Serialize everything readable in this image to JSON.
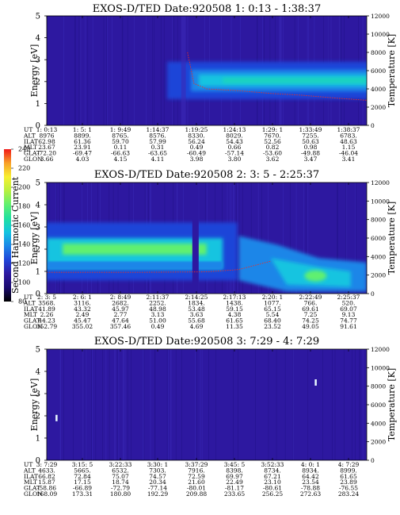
{
  "colors": {
    "background": "#2d18a0",
    "colorbar": [
      "#000000",
      "#1a0a6e",
      "#2d18a0",
      "#1f44d8",
      "#1a86e8",
      "#12c4e0",
      "#20e0a0",
      "#60f070",
      "#b8f040",
      "#f8f030",
      "#f8a028",
      "#f01818"
    ]
  },
  "colorbar": {
    "label": "Second Harmonic Current",
    "ticks": [
      "80",
      "100",
      "120",
      "140",
      "160",
      "180",
      "200",
      "220",
      "240"
    ]
  },
  "chart_data": [
    {
      "type": "heatmap",
      "title": "EXOS-D/TED   Date:920508   1: 0:13 - 1:38:37",
      "ylabel": "Energy [eV]",
      "ylabel_right": "Temperature [K]",
      "ylim": [
        0,
        5
      ],
      "ylim_right": [
        0,
        12000
      ],
      "yticks": [
        "0",
        "1",
        "2",
        "3",
        "4",
        "5"
      ],
      "yticks_right": [
        "0",
        "2000",
        "4000",
        "6000",
        "8000",
        "10000",
        "12000"
      ],
      "band": {
        "start_frac": 0.5,
        "energy_center": 2.05,
        "energy_halfwidth": 0.45
      },
      "temperature_trace": {
        "x_frac": [
          0.44,
          0.46,
          0.5,
          0.6,
          0.7,
          0.8,
          0.9,
          1.0
        ],
        "temperature": [
          8000,
          4600,
          4000,
          3800,
          3500,
          3300,
          3000,
          2750
        ]
      },
      "ephemeris": {
        "labels": [
          "UT",
          "ALT",
          "ILAT",
          "MLT",
          "GLAT",
          "GLON"
        ],
        "columns": [
          [
            "1: 0:13",
            "8976",
            "62.98",
            "23.67",
            "-72.20",
            "3.66"
          ],
          [
            "1: 5: 1",
            "8899.",
            "61.36",
            "23.91",
            "-69.47",
            "4.03"
          ],
          [
            "1: 9:49",
            "8765.",
            "59.70",
            "0.11",
            "-66.63",
            "4.15"
          ],
          [
            "1:14:37",
            "8576.",
            "57.99",
            "0.31",
            "-63.65",
            "4.11"
          ],
          [
            "1:19:25",
            "8330.",
            "56.24",
            "0.49",
            "-60.49",
            "3.98"
          ],
          [
            "1:24:13",
            "8029.",
            "54.43",
            "0.66",
            "-57.14",
            "3.80"
          ],
          [
            "1:29: 1",
            "7670.",
            "52.56",
            "0.82",
            "-53.60",
            "3.62"
          ],
          [
            "1:33:49",
            "7255.",
            "50.63",
            "0.98",
            "-49.88",
            "3.47"
          ],
          [
            "1:38:37",
            "6783.",
            "48.63",
            "1.15",
            "-46.04",
            "3.41"
          ]
        ]
      }
    },
    {
      "type": "heatmap",
      "title": "EXOS-D/TED   Date:920508   2: 3: 5 - 2:25:37",
      "ylabel": "Energy [eV]",
      "ylabel_right": "Temperature [K]",
      "ylim": [
        0,
        5
      ],
      "ylim_right": [
        0,
        12000
      ],
      "yticks": [
        "0",
        "1",
        "2",
        "3",
        "4",
        "5"
      ],
      "yticks_right": [
        "0",
        "2000",
        "4000",
        "6000",
        "8000",
        "10000",
        "12000"
      ],
      "temperature_trace": {
        "x_frac": [
          0.0,
          0.3,
          0.5,
          0.6,
          0.7
        ],
        "temperature": [
          2300,
          2300,
          2350,
          2600,
          3500
        ]
      },
      "ephemeris": {
        "labels": [
          "UT",
          "ALT",
          "ILAT",
          "MLT",
          "GLAT",
          "GLON"
        ],
        "columns": [
          [
            "2: 3: 5",
            "3568.",
            "41.89",
            "2.26",
            "44.23",
            "352.79"
          ],
          [
            "2: 6: 1",
            "3116.",
            "43.32",
            "2.49",
            "45.47",
            "355.02"
          ],
          [
            "2: 8:49",
            "2682.",
            "45.97",
            "2.77",
            "47.64",
            "357.46"
          ],
          [
            "2:11:37",
            "2252.",
            "48.98",
            "3.13",
            "51.00",
            "0.49"
          ],
          [
            "2:14:25",
            "1834.",
            "53.48",
            "3.63",
            "55.68",
            "4.69"
          ],
          [
            "2:17:13",
            "1438.",
            "59.15",
            "4.38",
            "61.65",
            "11.35"
          ],
          [
            "2:20: 1",
            "1077.",
            "65.15",
            "5.54",
            "68.40",
            "23.52"
          ],
          [
            "2:22:49",
            "766.",
            "69.61",
            "7.25",
            "74.25",
            "49.05"
          ],
          [
            "2:25:37",
            "520.",
            "69.07",
            "9.13",
            "74.77",
            "91.61"
          ]
        ]
      }
    },
    {
      "type": "heatmap",
      "title": "EXOS-D/TED   Date:920508   3: 7:29 - 4: 7:29",
      "ylabel": "Energy [eV]",
      "ylabel_right": "Temperature [K]",
      "ylim": [
        0,
        5
      ],
      "ylim_right": [
        0,
        12000
      ],
      "yticks": [
        "0",
        "1",
        "2",
        "3",
        "4",
        "5"
      ],
      "yticks_right": [
        "0",
        "2000",
        "4000",
        "6000",
        "8000",
        "10000",
        "12000"
      ],
      "spikes": [
        {
          "x_frac": 0.03,
          "energy": 1.9
        },
        {
          "x_frac": 0.84,
          "energy": 3.5
        }
      ],
      "ephemeris": {
        "labels": [
          "UT",
          "ALT",
          "ILAT",
          "MLT",
          "GLAT",
          "GLON"
        ],
        "columns": [
          [
            "3: 7:29",
            "4633.",
            "66.82",
            "15.87",
            "-58.86",
            "168.09"
          ],
          [
            "3:15: 5",
            "5665.",
            "72.84",
            "17.15",
            "-66.89",
            "173.31"
          ],
          [
            "3:22:33",
            "6532.",
            "75.07",
            "18.74",
            "-72.79",
            "180.80"
          ],
          [
            "3:30: 1",
            "7303.",
            "74.57",
            "20.34",
            "-77.14",
            "192.29"
          ],
          [
            "3:37:29",
            "7916.",
            "72.59",
            "21.60",
            "-80.01",
            "209.88"
          ],
          [
            "3:45: 5",
            "8398.",
            "69.97",
            "22.49",
            "-81.17",
            "233.65"
          ],
          [
            "3:52:33",
            "8734.",
            "67.21",
            "23.10",
            "-80.61",
            "256.25"
          ],
          [
            "4: 0: 1",
            "8934.",
            "64.42",
            "23.54",
            "-78.88",
            "272.63"
          ],
          [
            "4: 7:29",
            "8999.",
            "61.65",
            "23.89",
            "-76.55",
            "283.24"
          ]
        ]
      }
    }
  ]
}
